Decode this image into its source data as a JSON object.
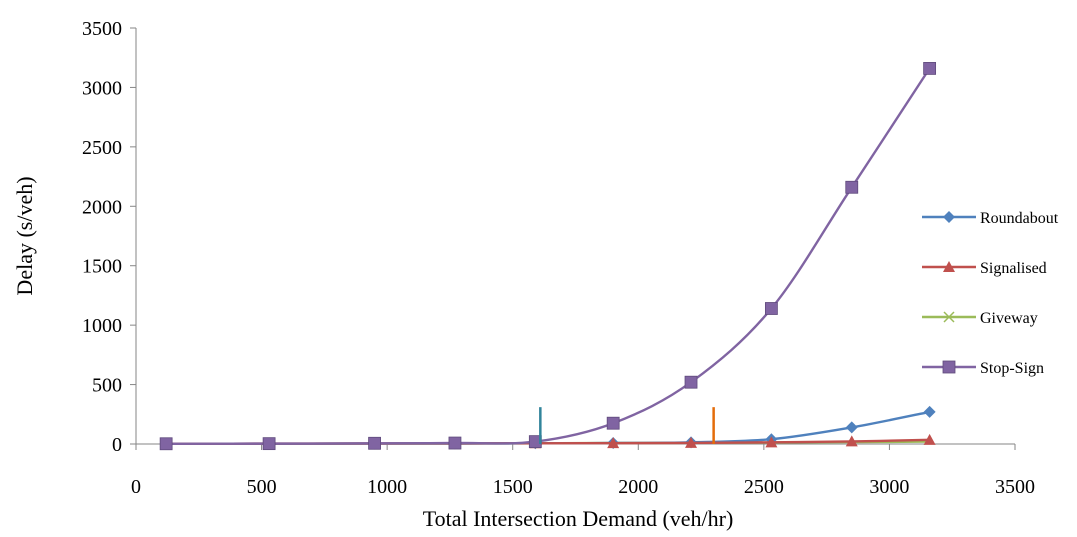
{
  "chart_data": {
    "type": "line",
    "title": "",
    "xlabel": "Total Intersection Demand (veh/hr)",
    "ylabel": "Delay (s/veh)",
    "xlim": [
      0,
      3500
    ],
    "ylim": [
      0,
      3500
    ],
    "xticks": [
      0,
      500,
      1000,
      1500,
      2000,
      2500,
      3000,
      3500
    ],
    "yticks": [
      0,
      500,
      1000,
      1500,
      2000,
      2500,
      3000,
      3500
    ],
    "grid": false,
    "legend_position": "right",
    "smooth": true,
    "x": [
      120,
      530,
      950,
      1270,
      1590,
      1900,
      2210,
      2530,
      2850,
      3160
    ],
    "series": [
      {
        "name": "Roundabout",
        "color": "#4F81BD",
        "marker": "diamond",
        "values": [
          2,
          2,
          3,
          4,
          6,
          8,
          14,
          40,
          140,
          270
        ]
      },
      {
        "name": "Signalised",
        "color": "#C0504D",
        "marker": "triangle",
        "values": [
          2,
          3,
          4,
          5,
          6,
          7,
          9,
          14,
          22,
          35
        ]
      },
      {
        "name": "Giveway",
        "color": "#9BBB59",
        "marker": "x",
        "values": [
          2,
          2,
          3,
          4,
          6,
          8,
          10,
          13,
          16,
          20
        ]
      },
      {
        "name": "Stop-Sign",
        "color": "#8064A2",
        "marker": "square",
        "values": [
          2,
          3,
          6,
          8,
          20,
          175,
          520,
          1140,
          2160,
          3160
        ]
      }
    ],
    "annotations": [
      {
        "type": "vertical-marker",
        "x": 1610,
        "y_from": 0,
        "y_to": 310,
        "color": "#31849B"
      },
      {
        "type": "vertical-marker",
        "x": 2300,
        "y_from": 0,
        "y_to": 310,
        "color": "#E46C0A"
      }
    ]
  }
}
